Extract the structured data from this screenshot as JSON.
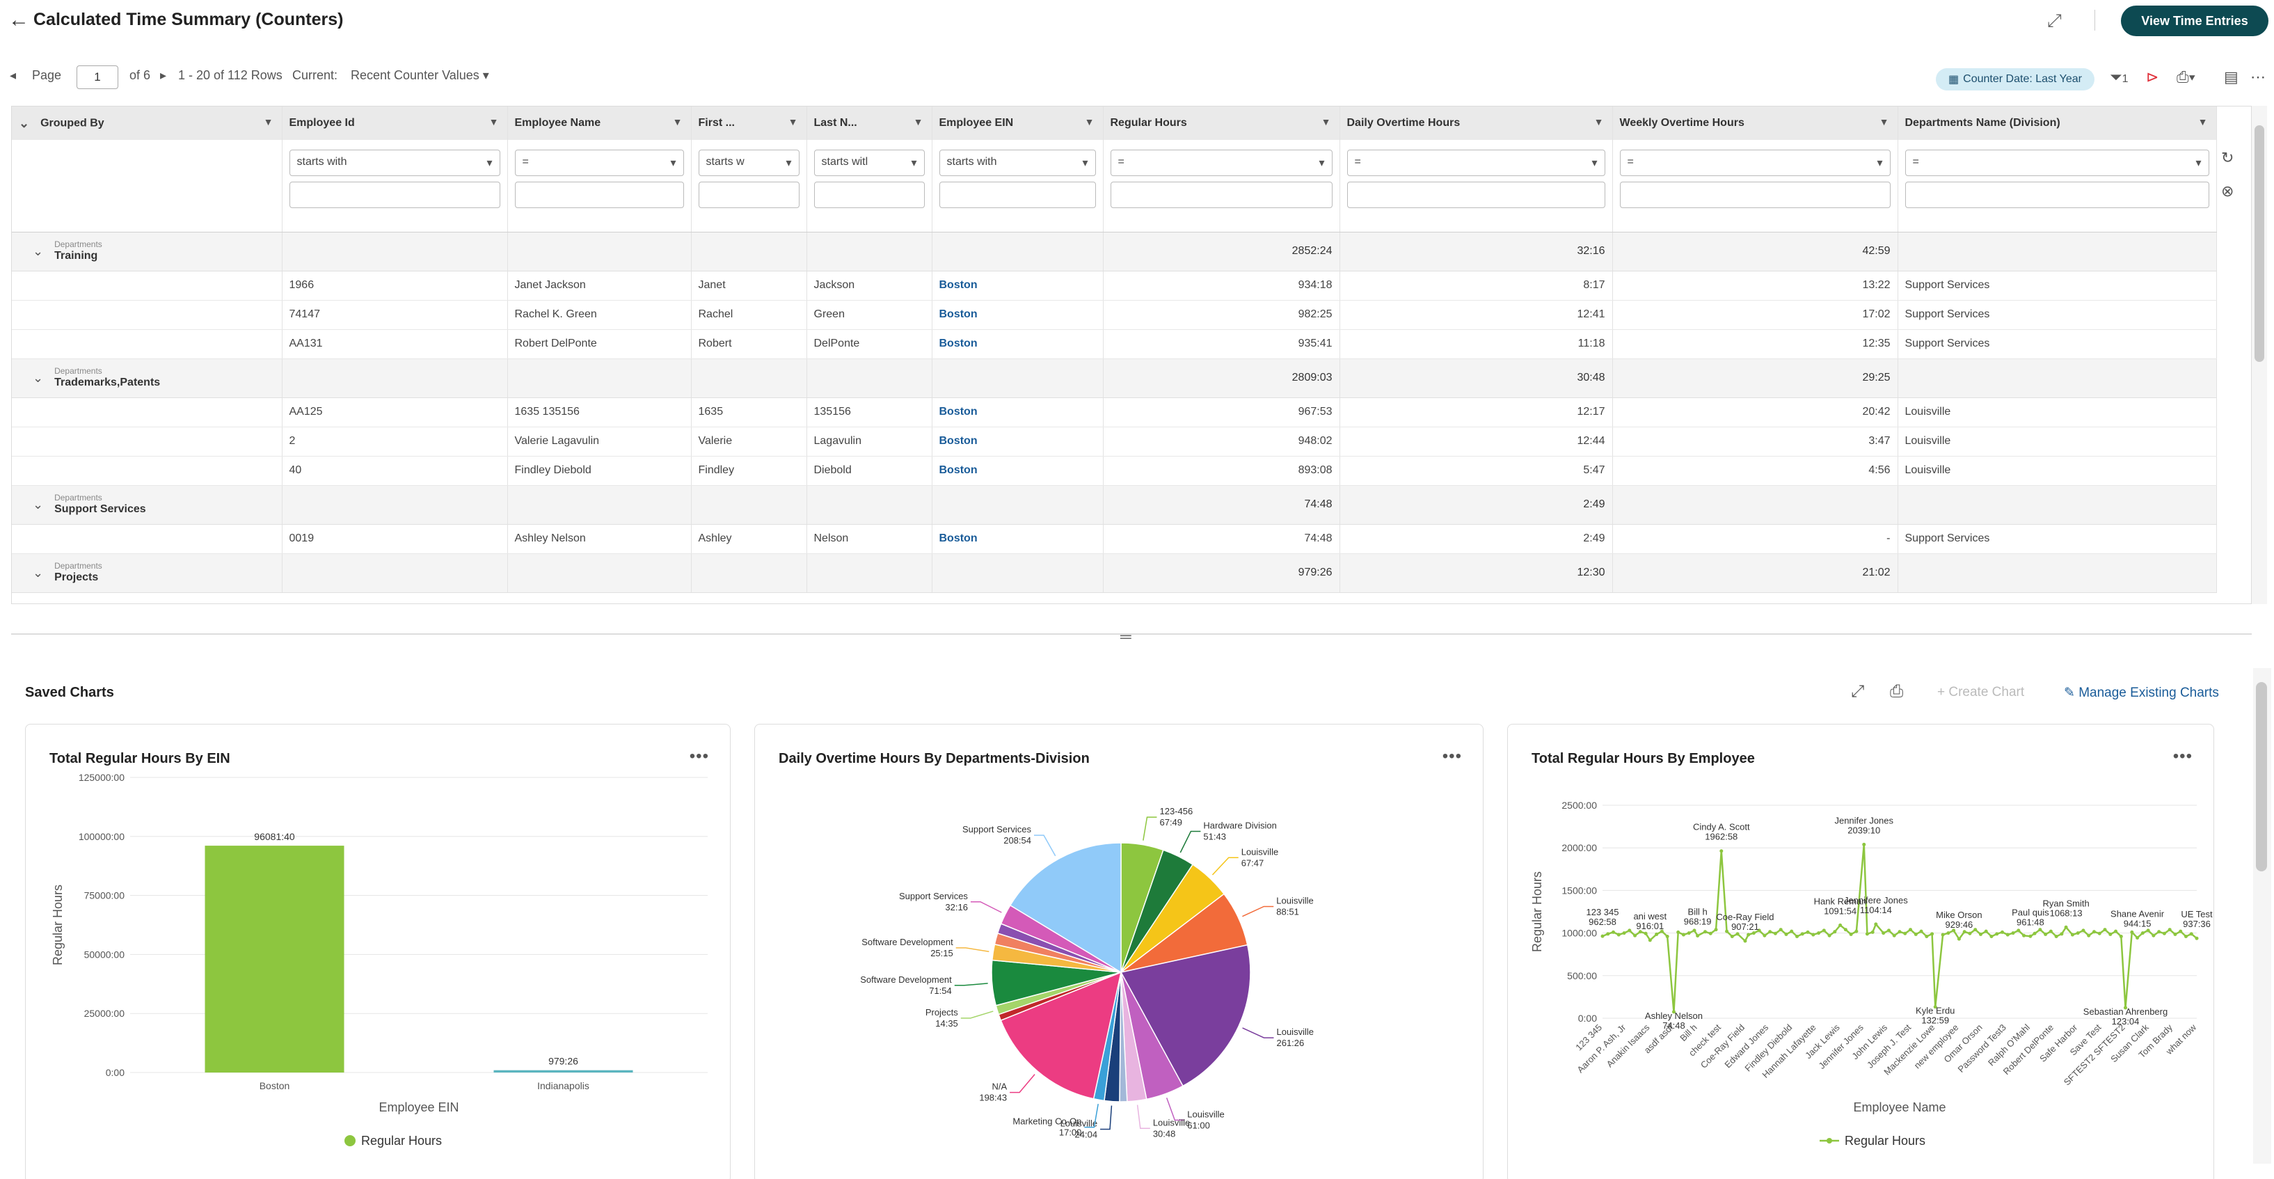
{
  "header": {
    "title": "Calculated Time Summary (Counters)",
    "view_btn": "View Time Entries"
  },
  "pager": {
    "label": "Page",
    "page": "1",
    "of": "of 6",
    "rows": "1 - 20 of 112 Rows",
    "current_label": "Current:",
    "current_value": "Recent Counter Values",
    "chip": "Counter Date: Last Year",
    "filter_count": "1"
  },
  "columns": [
    "Grouped By",
    "Employee Id",
    "Employee Name",
    "First ...",
    "Last N...",
    "Employee EIN",
    "Regular Hours",
    "Daily Overtime Hours",
    "Weekly Overtime Hours",
    "Departments Name (Division)"
  ],
  "filters": [
    "",
    "starts with",
    "=",
    "starts w",
    "starts witl",
    "starts with",
    "=",
    "=",
    "=",
    "="
  ],
  "rows": [
    {
      "type": "group",
      "label": "Departments",
      "name": "Training",
      "reg": "2852:24",
      "daily": "32:16",
      "weekly": "42:59"
    },
    {
      "type": "data",
      "id": "1966",
      "name": "Janet Jackson",
      "first": "Janet",
      "last": "Jackson",
      "ein": "Boston",
      "reg": "934:18",
      "daily": "8:17",
      "weekly": "13:22",
      "dept": "Support Services"
    },
    {
      "type": "data",
      "id": "74147",
      "name": "Rachel K. Green",
      "first": "Rachel",
      "last": "Green",
      "ein": "Boston",
      "reg": "982:25",
      "daily": "12:41",
      "weekly": "17:02",
      "dept": "Support Services"
    },
    {
      "type": "data",
      "id": "AA131",
      "name": "Robert DelPonte",
      "first": "Robert",
      "last": "DelPonte",
      "ein": "Boston",
      "reg": "935:41",
      "daily": "11:18",
      "weekly": "12:35",
      "dept": "Support Services"
    },
    {
      "type": "group",
      "label": "Departments",
      "name": "Trademarks,Patents",
      "reg": "2809:03",
      "daily": "30:48",
      "weekly": "29:25"
    },
    {
      "type": "data",
      "id": "AA125",
      "name": "1635 135156",
      "first": "1635",
      "last": "135156",
      "ein": "Boston",
      "reg": "967:53",
      "daily": "12:17",
      "weekly": "20:42",
      "dept": "Louisville"
    },
    {
      "type": "data",
      "id": "2",
      "name": "Valerie Lagavulin",
      "first": "Valerie",
      "last": "Lagavulin",
      "ein": "Boston",
      "reg": "948:02",
      "daily": "12:44",
      "weekly": "3:47",
      "dept": "Louisville"
    },
    {
      "type": "data",
      "id": "40",
      "name": "Findley Diebold",
      "first": "Findley",
      "last": "Diebold",
      "ein": "Boston",
      "reg": "893:08",
      "daily": "5:47",
      "weekly": "4:56",
      "dept": "Louisville"
    },
    {
      "type": "group",
      "label": "Departments",
      "name": "Support Services",
      "reg": "74:48",
      "daily": "2:49",
      "weekly": ""
    },
    {
      "type": "data",
      "id": "0019",
      "name": "Ashley Nelson",
      "first": "Ashley",
      "last": "Nelson",
      "ein": "Boston",
      "reg": "74:48",
      "daily": "2:49",
      "weekly": "-",
      "dept": "Support Services"
    },
    {
      "type": "group",
      "label": "Departments",
      "name": "Projects",
      "reg": "979:26",
      "daily": "12:30",
      "weekly": "21:02"
    }
  ],
  "charts_section": {
    "title": "Saved Charts",
    "create": "+ Create Chart",
    "manage": "Manage Existing Charts"
  },
  "chart_data": [
    {
      "type": "bar",
      "title": "Total Regular Hours By EIN",
      "categories": [
        "Boston",
        "Indianapolis"
      ],
      "values": [
        96081.67,
        979.43
      ],
      "data_labels": [
        "96081:40",
        "979:26"
      ],
      "ylabel": "Regular Hours",
      "xlabel": "Employee EIN",
      "yticks": [
        "0:00",
        "25000:00",
        "50000:00",
        "75000:00",
        "100000:00",
        "125000:00"
      ],
      "ylim": [
        0,
        125000
      ],
      "legend": "Regular Hours",
      "color": "#8dc63f"
    },
    {
      "type": "pie",
      "title": "Daily Overtime Hours By Departments-Division",
      "slices": [
        {
          "label": "123-456",
          "value": "67:49",
          "v": 67.8,
          "color": "#8dc63f"
        },
        {
          "label": "Hardware Division",
          "value": "51:43",
          "v": 51.7,
          "color": "#1e7b3a"
        },
        {
          "label": "Louisville",
          "value": "67:47",
          "v": 67.8,
          "color": "#f5c518"
        },
        {
          "label": "Louisville",
          "value": "88:51",
          "v": 88.9,
          "color": "#f26b3a"
        },
        {
          "label": "Louisville",
          "value": "261:26",
          "v": 261.4,
          "color": "#7a3e9d"
        },
        {
          "label": "Louisville",
          "value": "61:00",
          "v": 61.0,
          "color": "#c060c0"
        },
        {
          "label": "Louisville",
          "value": "30:48",
          "v": 30.8,
          "color": "#e8b4e0"
        },
        {
          "label": "",
          "value": "",
          "v": 12,
          "color": "#a3b8d8"
        },
        {
          "label": "Louisville",
          "value": "24:04",
          "v": 24.1,
          "color": "#1a3f7a"
        },
        {
          "label": "Marketing Co-Op",
          "value": "17:00",
          "v": 17.0,
          "color": "#3aa0d8"
        },
        {
          "label": "N/A",
          "value": "198:43",
          "v": 198.7,
          "color": "#ec3c82"
        },
        {
          "label": "",
          "value": "",
          "v": 10,
          "color": "#c0282a"
        },
        {
          "label": "Projects",
          "value": "14:35",
          "v": 14.6,
          "color": "#a4d56a"
        },
        {
          "label": "Software Development",
          "value": "71:54",
          "v": 71.9,
          "color": "#1a8a3e"
        },
        {
          "label": "Software Development",
          "value": "25:15",
          "v": 25.3,
          "color": "#f5b840"
        },
        {
          "label": "",
          "value": "",
          "v": 18,
          "color": "#f08060"
        },
        {
          "label": "",
          "value": "",
          "v": 16,
          "color": "#8a4fb0"
        },
        {
          "label": "Support Services",
          "value": "32:16",
          "v": 32.3,
          "color": "#d45ab8"
        },
        {
          "label": "Support Services",
          "value": "208:54",
          "v": 208.9,
          "color": "#90caf9"
        }
      ]
    },
    {
      "type": "line",
      "title": "Total Regular Hours By Employee",
      "ylabel": "Regular Hours",
      "xlabel": "Employee Name",
      "yticks": [
        "0:00",
        "500:00",
        "1000:00",
        "1500:00",
        "2000:00",
        "2500:00"
      ],
      "ylim": [
        0,
        2500
      ],
      "legend": "Regular Hours",
      "color": "#8dc63f",
      "xcats": [
        "123 345",
        "Aaron P. Ash, Jr",
        "Anakin Isaacs",
        "asdf asdf",
        "Bill h",
        "check test",
        "Coe-Ray Field",
        "Edward Jones",
        "Findley Diebold",
        "Hannah Lafayette",
        "Jack Lewis",
        "Jennifer Jones",
        "John Lewis",
        "Joseph J. Test",
        "Mackenzie Lowe",
        "new employee",
        "Omar Orson",
        "Password Test3",
        "Ralph O'Mahl",
        "Robert DelPonte",
        "Safe Harbor",
        "Save Test",
        "SFTEST2 SFTEST2",
        "Susan Clark",
        "Tom Brady",
        "what now"
      ],
      "annotations": [
        {
          "label": "123 345",
          "value": "962:58",
          "x": 0,
          "y": 963
        },
        {
          "label": "ani west",
          "value": "916:01",
          "x": 2,
          "y": 916
        },
        {
          "label": "Ashley Nelson",
          "value": "74:48",
          "x": 3,
          "y": 75
        },
        {
          "label": "Bill h",
          "value": "968:19",
          "x": 4,
          "y": 968
        },
        {
          "label": "Cindy A. Scott",
          "value": "1962:58",
          "x": 5,
          "y": 1963
        },
        {
          "label": "Coe-Ray Field",
          "value": "907:21",
          "x": 6,
          "y": 907
        },
        {
          "label": "Hank Reman",
          "value": "1091:54",
          "x": 10,
          "y": 1092
        },
        {
          "label": "Jennifer Jones",
          "value": "2039:10",
          "x": 11,
          "y": 2039
        },
        {
          "label": "Jennifere Jones",
          "value": "1104:14",
          "x": 11.5,
          "y": 1104
        },
        {
          "label": "Kyle Erdu",
          "value": "132:59",
          "x": 14,
          "y": 133
        },
        {
          "label": "Mike Orson",
          "value": "929:46",
          "x": 15,
          "y": 930
        },
        {
          "label": "Paul quis",
          "value": "961:48",
          "x": 18,
          "y": 962
        },
        {
          "label": "Ryan Smith",
          "value": "1068:13",
          "x": 19.5,
          "y": 1068
        },
        {
          "label": "Sebastian Ahrenberg",
          "value": "123:04",
          "x": 22,
          "y": 123
        },
        {
          "label": "Shane Avenir",
          "value": "944:15",
          "x": 22.5,
          "y": 944
        },
        {
          "label": "UE Test",
          "value": "937:36",
          "x": 25,
          "y": 938
        }
      ]
    }
  ]
}
